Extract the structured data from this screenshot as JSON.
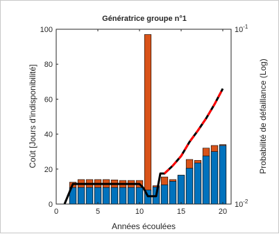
{
  "chart_data": {
    "type": "bar",
    "title": "Génératrice groupe n°1",
    "xlabel": "Années écoulées",
    "ylabel": "Coût [Jours d'indisponibilité]",
    "y2label": "Probabilité de défaillance (Log)",
    "xlim": [
      0,
      21
    ],
    "ylim": [
      0,
      100
    ],
    "y2lim_exponents": [
      -2,
      -1
    ],
    "y2_scale": "log",
    "x_ticks": [
      "0",
      "5",
      "10",
      "15",
      "20"
    ],
    "y_ticks": [
      "0",
      "20",
      "40",
      "60",
      "80",
      "100"
    ],
    "y2_ticks": [
      {
        "base": "10",
        "exp": "-2"
      },
      {
        "base": "10",
        "exp": "-1"
      }
    ],
    "grid": false,
    "colors": {
      "blue_bars": "#0072BD",
      "orange_bars": "#D95319",
      "black_line": "#000000",
      "red_dashed": "#FF0000"
    },
    "bars": {
      "years": [
        2,
        3,
        4,
        5,
        6,
        7,
        8,
        9,
        10,
        11,
        12,
        13,
        14,
        15,
        16,
        17,
        18,
        19,
        20
      ],
      "blue_values": [
        9.5,
        9.5,
        9.5,
        9.5,
        9.5,
        9.5,
        9.5,
        9.5,
        9.5,
        8,
        9.8,
        11,
        13,
        16.5,
        20.5,
        23.5,
        27.5,
        30,
        33.5
      ],
      "orange_values": [
        12.5,
        14,
        14,
        14,
        14,
        13.8,
        13.5,
        13.5,
        13.5,
        97,
        10.5,
        15.5,
        14,
        16.5,
        25.5,
        25,
        32,
        33.5,
        34
      ],
      "stacking": "overlay"
    },
    "series": [
      {
        "style": "solid",
        "color": "#000000",
        "x": [
          1,
          2,
          3,
          4,
          5,
          6,
          7,
          8,
          9,
          10,
          10.5,
          11,
          12,
          12.5,
          13,
          14,
          15,
          16,
          17,
          18,
          19,
          20
        ],
        "y": [
          0,
          11.5,
          11.5,
          11.5,
          11.5,
          11.5,
          11.5,
          11.5,
          11.5,
          11.5,
          9,
          4.5,
          4.5,
          17.5,
          17.5,
          22,
          27.5,
          35.5,
          42,
          49,
          57,
          66
        ]
      },
      {
        "style": "dashed",
        "color": "#FF0000",
        "x": [
          13,
          14,
          15,
          16,
          17,
          18,
          19,
          20
        ],
        "y": [
          17.5,
          22,
          27.5,
          35.5,
          42,
          49,
          57,
          66
        ]
      }
    ]
  }
}
